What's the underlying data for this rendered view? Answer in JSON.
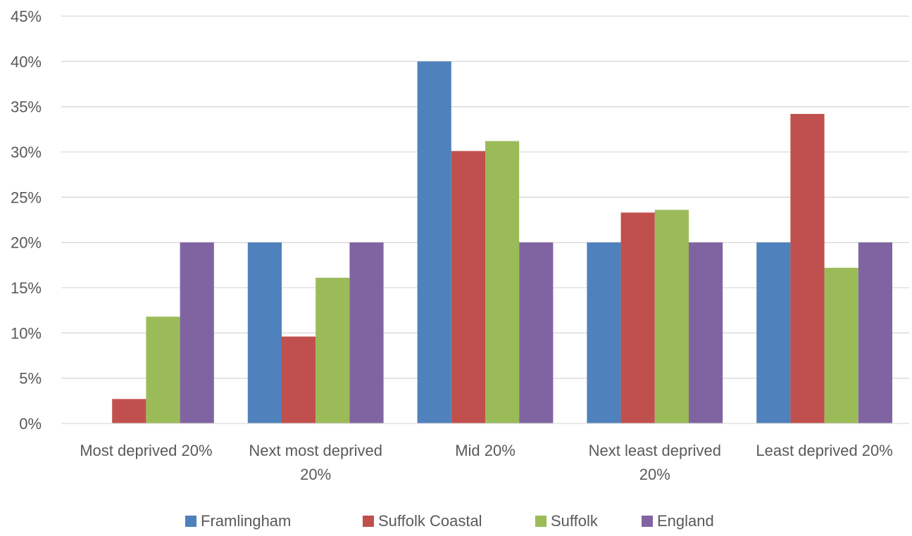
{
  "chart_data": {
    "type": "bar",
    "title": "",
    "xlabel": "",
    "ylabel": "",
    "ylim": [
      0,
      45
    ],
    "y_ticks": [
      0,
      5,
      10,
      15,
      20,
      25,
      30,
      35,
      40,
      45
    ],
    "y_tick_suffix": "%",
    "grid": true,
    "legend_position": "bottom",
    "categories": [
      [
        "Most deprived 20%"
      ],
      [
        "Next most deprived",
        "20%"
      ],
      [
        "Mid 20%"
      ],
      [
        "Next least deprived",
        "20%"
      ],
      [
        "Least deprived 20%"
      ]
    ],
    "series": [
      {
        "name": "Framlingham",
        "color": "#4f81bd",
        "values": [
          0,
          20,
          40,
          20,
          20
        ]
      },
      {
        "name": "Suffolk Coastal",
        "color": "#c0504d",
        "values": [
          2.7,
          9.6,
          30.1,
          23.3,
          34.2
        ]
      },
      {
        "name": "Suffolk",
        "color": "#9bbb59",
        "values": [
          11.8,
          16.1,
          31.2,
          23.6,
          17.2
        ]
      },
      {
        "name": "England",
        "color": "#8064a2",
        "values": [
          20,
          20,
          20,
          20,
          20
        ]
      }
    ]
  }
}
